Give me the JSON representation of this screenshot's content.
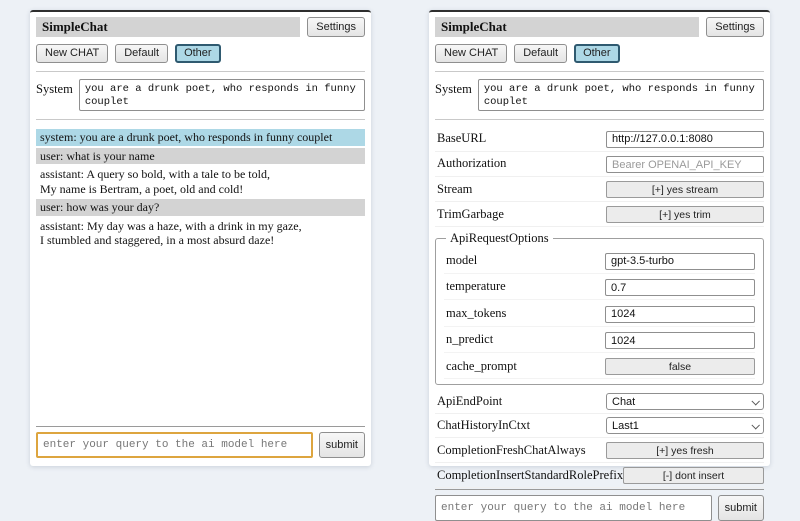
{
  "app": {
    "title": "SimpleChat",
    "settings_label": "Settings"
  },
  "sessions": {
    "new_chat": "New CHAT",
    "default": "Default",
    "other": "Other"
  },
  "system": {
    "label": "System",
    "value": "you are a drunk poet, who responds in funny couplet"
  },
  "chat": {
    "messages": [
      {
        "role": "system",
        "text": "system: you are a drunk poet, who responds in funny couplet"
      },
      {
        "role": "user",
        "text": "user: what is your name"
      },
      {
        "role": "assistant",
        "text": "assistant: A query so bold, with a tale to be told,\nMy name is Bertram, a poet, old and cold!"
      },
      {
        "role": "user",
        "text": "user: how was your day?"
      },
      {
        "role": "assistant",
        "text": "assistant: My day was a haze, with a drink in my gaze,\nI stumbled and staggered, in a most absurd daze!"
      }
    ]
  },
  "query": {
    "placeholder": "enter your query to the ai model here",
    "submit_label": "submit"
  },
  "settings": {
    "base_url": {
      "label": "BaseURL",
      "value": "http://127.0.0.1:8080"
    },
    "authorization": {
      "label": "Authorization",
      "placeholder": "Bearer OPENAI_API_KEY"
    },
    "stream": {
      "label": "Stream",
      "value": "[+] yes stream"
    },
    "trim_garbage": {
      "label": "TrimGarbage",
      "value": "[+] yes trim"
    },
    "api_request_options": {
      "legend": "ApiRequestOptions",
      "model": {
        "label": "model",
        "value": "gpt-3.5-turbo"
      },
      "temperature": {
        "label": "temperature",
        "value": "0.7"
      },
      "max_tokens": {
        "label": "max_tokens",
        "value": "1024"
      },
      "n_predict": {
        "label": "n_predict",
        "value": "1024"
      },
      "cache_prompt": {
        "label": "cache_prompt",
        "value": "false"
      }
    },
    "api_endpoint": {
      "label": "ApiEndPoint",
      "value": "Chat"
    },
    "chat_history_in_ctxt": {
      "label": "ChatHistoryInCtxt",
      "value": "Last1"
    },
    "completion_fresh_chat_always": {
      "label": "CompletionFreshChatAlways",
      "value": "[+] yes fresh"
    },
    "completion_insert_standard_role_prefix": {
      "label": "CompletionInsertStandardRolePrefix",
      "value": "[-] dont insert"
    }
  },
  "colors": {
    "page_bg": "#edf1f6",
    "heading_bg": "#d3d3d3",
    "system_msg_bg": "#add8e6",
    "user_msg_bg": "#d3d3d3",
    "selected_session_bg": "#add8e6",
    "focused_input_border": "#dda53f"
  }
}
